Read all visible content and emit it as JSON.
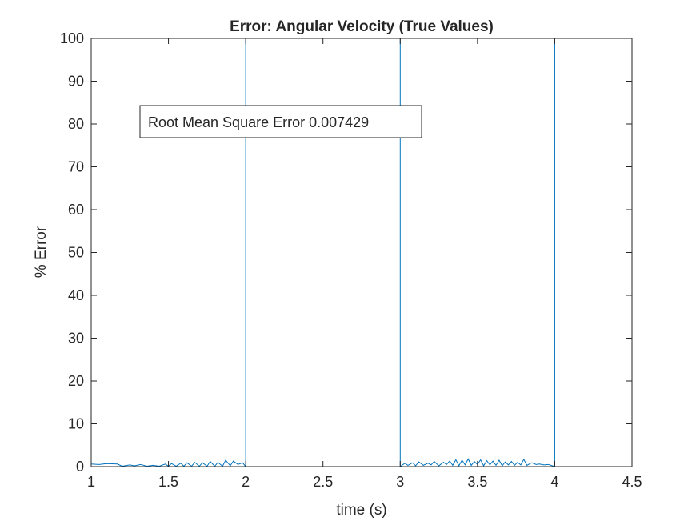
{
  "chart_data": {
    "type": "line",
    "title": "Error: Angular Velocity (True Values)",
    "xlabel": "time (s)",
    "ylabel": "% Error",
    "xlim": [
      1,
      4.5
    ],
    "ylim": [
      0,
      100
    ],
    "xticks": [
      "1",
      "1.5",
      "2",
      "2.5",
      "3",
      "3.5",
      "4",
      "4.5"
    ],
    "yticks": [
      "0",
      "10",
      "20",
      "30",
      "40",
      "50",
      "60",
      "70",
      "80",
      "90",
      "100"
    ],
    "grid": false,
    "line_color": "#0072BD",
    "annotation": "Root Mean Square Error 0.007429",
    "series": [
      {
        "x": [
          1.0,
          1.0,
          1.0,
          1.05,
          1.1,
          1.17,
          1.2,
          1.25,
          1.28,
          1.32,
          1.36,
          1.4,
          1.44,
          1.48,
          1.5,
          1.52,
          1.55,
          1.58,
          1.6,
          1.62,
          1.65,
          1.67,
          1.7,
          1.72,
          1.75,
          1.77,
          1.8,
          1.82,
          1.85,
          1.87,
          1.9,
          1.92,
          1.95,
          1.98,
          2.0,
          2.0,
          2.0,
          3.0,
          3.0,
          3.0,
          3.03,
          3.05,
          3.08,
          3.1,
          3.12,
          3.15,
          3.18,
          3.2,
          3.22,
          3.25,
          3.28,
          3.3,
          3.32,
          3.34,
          3.36,
          3.38,
          3.4,
          3.42,
          3.44,
          3.46,
          3.48,
          3.5,
          3.52,
          3.54,
          3.56,
          3.58,
          3.6,
          3.62,
          3.64,
          3.66,
          3.68,
          3.7,
          3.72,
          3.74,
          3.76,
          3.78,
          3.8,
          3.82,
          3.85,
          3.88,
          3.9,
          3.93,
          3.96,
          4.0,
          4.0,
          4.0
        ],
        "y": [
          100,
          0,
          0.6,
          0.5,
          0.7,
          0.6,
          0.1,
          0.4,
          0.2,
          0.5,
          0.1,
          0.3,
          0.1,
          0.6,
          0.1,
          0.7,
          0.1,
          0.8,
          0.1,
          0.9,
          0.1,
          1.0,
          0.1,
          0.9,
          0.1,
          1.2,
          0.1,
          1.0,
          0.1,
          1.5,
          0.2,
          1.3,
          0.5,
          0.9,
          0.0,
          100,
          0,
          0,
          100,
          0.0,
          0.8,
          0.3,
          0.9,
          0.2,
          1.1,
          0.3,
          0.8,
          0.4,
          1.2,
          0.2,
          1.0,
          0.5,
          1.3,
          0.3,
          1.6,
          0.2,
          1.5,
          0.4,
          1.8,
          0.3,
          1.2,
          0.5,
          1.6,
          0.2,
          1.4,
          0.4,
          1.3,
          0.3,
          1.5,
          0.2,
          1.1,
          0.4,
          1.2,
          0.3,
          1.0,
          0.4,
          1.7,
          0.3,
          0.9,
          0.5,
          0.6,
          0.4,
          0.5,
          0.0,
          100,
          0
        ]
      }
    ]
  }
}
